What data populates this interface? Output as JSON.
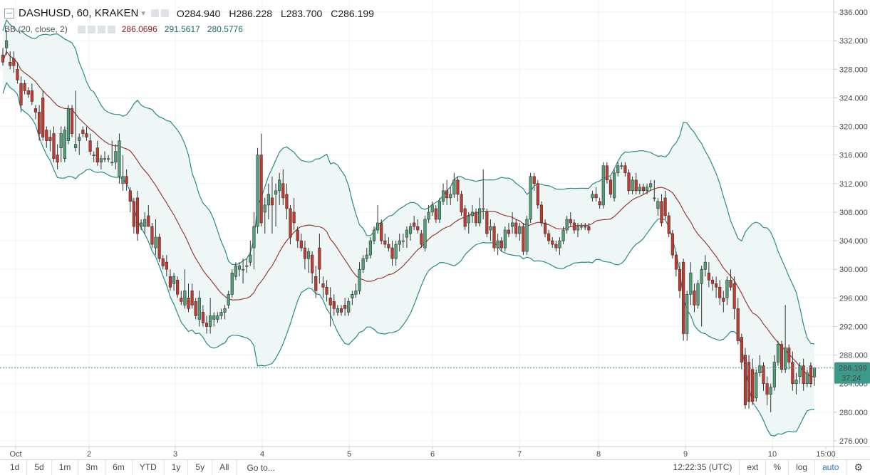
{
  "header": {
    "symbol": "DASHUSD, 60, KRAKEN",
    "dropdown_glyph": "▾",
    "open_label": "O",
    "open_value": "284.940",
    "high_label": "H",
    "high_value": "286.228",
    "low_label": "L",
    "low_value": "283.700",
    "close_label": "C",
    "close_value": "286.199"
  },
  "indicator": {
    "name": "BB (20, close, 2)",
    "basis": "286.0696",
    "upper": "291.5617",
    "lower": "280.5776"
  },
  "price_axis": {
    "ticks": [
      "336.000",
      "332.000",
      "328.000",
      "324.000",
      "320.000",
      "316.000",
      "312.000",
      "308.000",
      "304.000",
      "300.000",
      "296.000",
      "292.000",
      "288.000",
      "284.000",
      "280.000",
      "276.000"
    ],
    "tick_values": [
      336,
      332,
      328,
      324,
      320,
      316,
      312,
      308,
      304,
      300,
      296,
      292,
      288,
      284,
      280,
      276
    ],
    "last_price_label": "286.199",
    "countdown_label": "37:24"
  },
  "time_axis": {
    "labels": [
      "Oct",
      "2",
      "3",
      "4",
      "5",
      "6",
      "7",
      "8",
      "9",
      "10",
      "15:00"
    ]
  },
  "bottom_bar": {
    "timeframes": [
      "1d",
      "5d",
      "1m",
      "3m",
      "6m",
      "YTD",
      "1y",
      "5y",
      "All"
    ],
    "goto": "Go to...",
    "clock": "12:22:35 (UTC)",
    "ext": "ext",
    "percent": "%",
    "log": "log",
    "auto": "auto",
    "gear_icon": "gear-icon"
  },
  "colors": {
    "up": "#53a17a",
    "down": "#c8392d",
    "basis": "#9b3b35",
    "band": "#2a8a8a",
    "band_fill": "#eef6f6",
    "last_price_bg": "#3c9a8a",
    "grid": "#eef0f2"
  },
  "chart_data": {
    "type": "candlestick",
    "title": "DASHUSD, 60, KRAKEN",
    "ylim": [
      276,
      336
    ],
    "candles_ohlc": [
      [
        330.0,
        331.0,
        328.5,
        329.0
      ],
      [
        331.0,
        333.5,
        330.0,
        332.0
      ],
      [
        329.0,
        330.5,
        328.0,
        328.5
      ],
      [
        329.5,
        330.5,
        327.5,
        328.5
      ],
      [
        328.0,
        329.0,
        326.0,
        326.5
      ],
      [
        326.0,
        327.0,
        322.0,
        323.0
      ],
      [
        326.0,
        326.5,
        324.5,
        325.0
      ],
      [
        325.0,
        325.5,
        324.0,
        324.5
      ],
      [
        325.0,
        326.0,
        323.0,
        323.5
      ],
      [
        322.5,
        323.0,
        321.0,
        322.0
      ],
      [
        322.0,
        323.0,
        318.0,
        319.0
      ],
      [
        324.0,
        325.0,
        318.0,
        318.5
      ],
      [
        319.5,
        320.0,
        317.0,
        318.0
      ],
      [
        318.5,
        319.5,
        316.5,
        318.0
      ],
      [
        319.0,
        320.0,
        315.0,
        315.5
      ],
      [
        316.0,
        317.5,
        314.0,
        315.0
      ],
      [
        317.0,
        320.0,
        315.0,
        319.0
      ],
      [
        315.5,
        320.0,
        315.0,
        319.5
      ],
      [
        318.0,
        323.0,
        317.5,
        322.5
      ],
      [
        322.5,
        323.0,
        318.5,
        319.0
      ],
      [
        317.0,
        325.0,
        316.5,
        317.5
      ],
      [
        318.0,
        319.0,
        316.0,
        318.5
      ],
      [
        319.5,
        320.0,
        318.5,
        319.0
      ],
      [
        319.0,
        320.0,
        318.0,
        318.5
      ],
      [
        318.0,
        319.0,
        316.0,
        316.5
      ],
      [
        316.0,
        316.5,
        315.0,
        316.0
      ],
      [
        317.0,
        318.0,
        314.5,
        315.0
      ],
      [
        315.0,
        316.0,
        314.0,
        315.5
      ],
      [
        315.5,
        316.5,
        315.0,
        315.5
      ],
      [
        315.5,
        316.0,
        315.0,
        315.5
      ],
      [
        315.0,
        318.0,
        314.5,
        315.0
      ],
      [
        315.0,
        317.5,
        314.0,
        316.5
      ],
      [
        313.0,
        319.0,
        312.0,
        318.0
      ],
      [
        312.0,
        316.0,
        311.0,
        313.0
      ],
      [
        313.0,
        314.0,
        311.0,
        312.0
      ],
      [
        311.0,
        311.5,
        308.0,
        309.5
      ],
      [
        309.5,
        310.0,
        305.0,
        306.0
      ],
      [
        310.0,
        311.0,
        304.0,
        305.0
      ],
      [
        306.0,
        307.0,
        305.5,
        306.5
      ],
      [
        306.0,
        308.0,
        305.0,
        307.0
      ],
      [
        307.5,
        309.0,
        306.0,
        306.0
      ],
      [
        306.0,
        306.5,
        303.0,
        303.5
      ],
      [
        303.0,
        307.0,
        302.0,
        304.5
      ],
      [
        304.5,
        305.0,
        301.0,
        301.5
      ],
      [
        301.5,
        302.0,
        300.0,
        300.5
      ],
      [
        301.0,
        302.0,
        299.0,
        300.0
      ],
      [
        299.0,
        300.0,
        297.0,
        297.5
      ],
      [
        298.0,
        299.5,
        297.0,
        299.0
      ],
      [
        298.5,
        299.0,
        296.0,
        296.5
      ],
      [
        296.0,
        297.0,
        295.0,
        295.5
      ],
      [
        295.0,
        300.0,
        294.5,
        297.0
      ],
      [
        296.0,
        298.0,
        294.0,
        294.5
      ],
      [
        297.0,
        298.0,
        294.5,
        295.0
      ],
      [
        295.5,
        296.0,
        293.0,
        293.5
      ],
      [
        293.0,
        297.0,
        292.0,
        296.0
      ],
      [
        294.0,
        295.0,
        292.0,
        292.5
      ],
      [
        292.5,
        293.5,
        291.0,
        292.0
      ],
      [
        292.0,
        296.0,
        291.0,
        293.5
      ],
      [
        293.0,
        294.0,
        292.0,
        293.5
      ],
      [
        293.0,
        294.0,
        292.5,
        293.5
      ],
      [
        293.5,
        294.5,
        293.0,
        294.0
      ],
      [
        294.0,
        295.0,
        293.0,
        294.5
      ],
      [
        295.0,
        297.0,
        294.5,
        296.5
      ],
      [
        296.5,
        300.0,
        296.0,
        299.5
      ],
      [
        299.0,
        301.0,
        298.5,
        300.5
      ],
      [
        300.0,
        301.0,
        299.0,
        300.5
      ],
      [
        300.0,
        301.5,
        298.0,
        300.0
      ],
      [
        300.5,
        301.5,
        299.5,
        300.5
      ],
      [
        301.0,
        304.0,
        300.5,
        302.0
      ],
      [
        303.0,
        308.0,
        300.0,
        306.0
      ],
      [
        306.0,
        317.0,
        305.0,
        316.0
      ],
      [
        316.0,
        319.0,
        306.0,
        306.5
      ],
      [
        308.0,
        310.0,
        305.0,
        309.0
      ],
      [
        309.0,
        312.0,
        307.0,
        310.5
      ],
      [
        310.0,
        313.0,
        305.0,
        309.0
      ],
      [
        310.5,
        312.0,
        306.0,
        311.0
      ],
      [
        311.0,
        313.5,
        309.0,
        312.5
      ],
      [
        312.0,
        314.0,
        309.0,
        310.0
      ],
      [
        310.5,
        312.0,
        307.0,
        308.5
      ],
      [
        308.5,
        309.0,
        303.5,
        304.5
      ],
      [
        308.0,
        310.0,
        305.5,
        306.5
      ],
      [
        305.5,
        306.0,
        303.0,
        304.0
      ],
      [
        304.0,
        305.0,
        302.5,
        303.0
      ],
      [
        303.0,
        304.0,
        300.0,
        301.5
      ],
      [
        301.5,
        303.0,
        299.5,
        302.5
      ],
      [
        302.0,
        302.5,
        298.0,
        299.5
      ],
      [
        299.0,
        300.5,
        296.0,
        297.0
      ],
      [
        303.0,
        305.0,
        298.0,
        300.0
      ],
      [
        298.0,
        299.0,
        296.0,
        297.5
      ],
      [
        297.5,
        298.5,
        295.5,
        296.5
      ],
      [
        296.0,
        297.5,
        292.0,
        295.0
      ],
      [
        295.5,
        296.5,
        293.5,
        294.5
      ],
      [
        294.0,
        295.0,
        293.5,
        294.5
      ],
      [
        294.5,
        295.0,
        293.5,
        294.0
      ],
      [
        295.0,
        296.0,
        293.5,
        294.5
      ],
      [
        294.0,
        296.0,
        293.5,
        295.5
      ],
      [
        296.0,
        297.0,
        295.0,
        296.5
      ],
      [
        296.5,
        298.0,
        296.0,
        297.0
      ],
      [
        297.0,
        301.0,
        296.5,
        300.0
      ],
      [
        300.0,
        302.0,
        299.5,
        301.5
      ],
      [
        301.5,
        303.0,
        301.0,
        302.0
      ],
      [
        302.0,
        304.5,
        301.5,
        304.0
      ],
      [
        304.0,
        306.0,
        303.5,
        305.5
      ],
      [
        305.5,
        309.0,
        305.0,
        306.5
      ],
      [
        306.5,
        307.0,
        303.5,
        304.0
      ],
      [
        304.0,
        305.0,
        303.0,
        303.5
      ],
      [
        303.5,
        304.5,
        302.5,
        303.0
      ],
      [
        303.0,
        304.0,
        300.5,
        301.5
      ],
      [
        301.5,
        304.0,
        300.5,
        303.5
      ],
      [
        303.5,
        305.0,
        302.5,
        304.0
      ],
      [
        304.0,
        305.0,
        303.0,
        304.0
      ],
      [
        304.5,
        306.0,
        303.0,
        305.5
      ],
      [
        305.0,
        306.5,
        304.0,
        306.0
      ],
      [
        306.5,
        307.5,
        305.5,
        306.0
      ],
      [
        306.0,
        307.0,
        305.0,
        305.5
      ],
      [
        305.0,
        305.5,
        303.0,
        303.5
      ],
      [
        303.0,
        307.5,
        302.5,
        307.0
      ],
      [
        307.0,
        309.0,
        306.5,
        308.0
      ],
      [
        308.0,
        309.5,
        307.5,
        309.0
      ],
      [
        308.5,
        309.0,
        306.5,
        307.0
      ],
      [
        307.0,
        310.0,
        306.5,
        309.5
      ],
      [
        309.5,
        312.0,
        309.0,
        311.0
      ],
      [
        311.0,
        312.5,
        309.0,
        310.0
      ],
      [
        310.0,
        311.5,
        309.0,
        310.5
      ],
      [
        310.5,
        313.5,
        310.0,
        312.5
      ],
      [
        312.5,
        313.0,
        309.5,
        310.5
      ],
      [
        310.5,
        311.0,
        307.5,
        308.0
      ],
      [
        308.5,
        309.0,
        305.5,
        306.0
      ],
      [
        306.5,
        308.0,
        305.0,
        307.5
      ],
      [
        307.5,
        309.0,
        306.5,
        308.0
      ],
      [
        308.0,
        308.5,
        306.0,
        306.5
      ],
      [
        306.5,
        310.0,
        306.0,
        308.5
      ],
      [
        308.5,
        314.0,
        307.0,
        308.5
      ],
      [
        308.0,
        308.5,
        304.5,
        305.0
      ],
      [
        305.5,
        307.0,
        304.0,
        306.0
      ],
      [
        306.0,
        306.5,
        302.5,
        303.0
      ],
      [
        303.0,
        305.0,
        302.0,
        304.0
      ],
      [
        304.0,
        304.5,
        302.5,
        303.0
      ],
      [
        303.0,
        306.0,
        302.5,
        305.5
      ],
      [
        305.5,
        306.5,
        304.5,
        305.0
      ],
      [
        306.0,
        308.0,
        305.0,
        306.5
      ],
      [
        306.5,
        307.0,
        304.5,
        305.0
      ],
      [
        305.0,
        306.5,
        304.0,
        306.0
      ],
      [
        306.0,
        306.5,
        302.0,
        302.5
      ],
      [
        302.5,
        307.5,
        302.0,
        307.0
      ],
      [
        307.0,
        313.5,
        306.5,
        313.0
      ],
      [
        313.0,
        313.5,
        311.0,
        312.0
      ],
      [
        312.0,
        312.5,
        308.5,
        309.0
      ],
      [
        309.0,
        309.5,
        306.0,
        306.5
      ],
      [
        306.5,
        307.0,
        304.5,
        305.0
      ],
      [
        305.0,
        305.5,
        303.5,
        304.0
      ],
      [
        304.0,
        304.5,
        303.0,
        303.5
      ],
      [
        303.5,
        304.0,
        302.5,
        303.0
      ],
      [
        303.0,
        304.5,
        302.0,
        304.0
      ],
      [
        304.0,
        306.0,
        303.5,
        305.5
      ],
      [
        305.5,
        307.5,
        305.0,
        307.0
      ],
      [
        307.0,
        308.0,
        306.0,
        306.5
      ],
      [
        306.5,
        307.0,
        305.0,
        305.5
      ],
      [
        305.5,
        306.5,
        304.5,
        306.0
      ],
      [
        306.0,
        306.5,
        305.5,
        306.0
      ],
      [
        306.0,
        306.5,
        305.5,
        306.0
      ],
      [
        306.0,
        306.5,
        305.0,
        305.5
      ],
      [
        310.0,
        311.0,
        309.5,
        310.5
      ],
      [
        310.5,
        311.5,
        309.5,
        310.0
      ],
      [
        309.5,
        310.0,
        308.5,
        309.0
      ],
      [
        309.0,
        315.0,
        308.5,
        314.5
      ],
      [
        314.5,
        315.0,
        312.0,
        312.5
      ],
      [
        312.5,
        313.0,
        310.0,
        310.5
      ],
      [
        310.0,
        314.0,
        309.5,
        313.5
      ],
      [
        313.5,
        315.0,
        313.0,
        314.5
      ],
      [
        314.5,
        315.0,
        314.0,
        314.5
      ],
      [
        314.5,
        315.0,
        313.0,
        313.5
      ],
      [
        313.5,
        314.0,
        310.5,
        311.0
      ],
      [
        311.0,
        313.0,
        310.5,
        312.5
      ],
      [
        312.5,
        313.5,
        310.5,
        311.0
      ],
      [
        311.0,
        312.0,
        310.5,
        311.5
      ],
      [
        311.5,
        312.0,
        310.5,
        311.0
      ],
      [
        311.0,
        312.0,
        310.5,
        311.5
      ],
      [
        311.5,
        312.5,
        311.0,
        312.0
      ],
      [
        310.0,
        312.5,
        309.5,
        310.0
      ],
      [
        308.5,
        310.0,
        307.5,
        309.5
      ],
      [
        309.5,
        310.5,
        306.0,
        306.5
      ],
      [
        310.0,
        311.0,
        307.0,
        307.5
      ],
      [
        307.5,
        308.0,
        304.5,
        305.0
      ],
      [
        305.0,
        305.5,
        301.5,
        302.0
      ],
      [
        302.0,
        302.5,
        299.0,
        300.0
      ],
      [
        300.0,
        301.0,
        296.0,
        297.0
      ],
      [
        301.0,
        301.5,
        290.0,
        291.0
      ],
      [
        291.0,
        297.0,
        290.0,
        296.5
      ],
      [
        296.5,
        301.0,
        295.0,
        299.5
      ],
      [
        297.0,
        298.0,
        294.0,
        295.0
      ],
      [
        295.0,
        298.5,
        294.5,
        298.0
      ],
      [
        298.0,
        300.5,
        292.0,
        300.0
      ],
      [
        300.0,
        302.0,
        299.0,
        301.0
      ],
      [
        299.5,
        301.0,
        297.5,
        298.5
      ],
      [
        298.5,
        299.0,
        297.0,
        298.0
      ],
      [
        298.0,
        299.0,
        296.0,
        297.5
      ],
      [
        297.5,
        298.5,
        295.0,
        296.0
      ],
      [
        296.0,
        297.0,
        294.0,
        295.5
      ],
      [
        296.0,
        299.0,
        295.0,
        298.5
      ],
      [
        298.5,
        300.0,
        297.0,
        297.5
      ],
      [
        298.0,
        299.0,
        293.0,
        294.5
      ],
      [
        294.5,
        296.0,
        289.5,
        290.0
      ],
      [
        290.5,
        291.0,
        286.0,
        287.0
      ],
      [
        288.0,
        289.0,
        280.5,
        281.0
      ],
      [
        287.0,
        288.0,
        280.5,
        281.5
      ],
      [
        286.0,
        287.5,
        281.0,
        281.5
      ],
      [
        282.0,
        286.0,
        281.5,
        285.5
      ],
      [
        285.5,
        288.0,
        285.0,
        286.5
      ],
      [
        286.5,
        287.0,
        283.0,
        284.0
      ],
      [
        284.0,
        285.0,
        281.0,
        282.5
      ],
      [
        282.5,
        284.0,
        280.0,
        283.5
      ],
      [
        283.5,
        288.0,
        283.0,
        287.0
      ],
      [
        287.0,
        290.0,
        286.5,
        289.5
      ],
      [
        289.5,
        290.0,
        285.5,
        286.0
      ],
      [
        286.0,
        295.0,
        285.5,
        289.0
      ],
      [
        289.0,
        289.5,
        286.0,
        287.0
      ],
      [
        287.0,
        288.5,
        283.0,
        284.0
      ],
      [
        284.0,
        285.5,
        282.5,
        284.5
      ],
      [
        285.0,
        287.0,
        284.0,
        286.5
      ],
      [
        286.5,
        287.5,
        283.0,
        284.0
      ],
      [
        284.0,
        286.0,
        283.5,
        285.5
      ],
      [
        286.5,
        287.0,
        283.5,
        284.0
      ],
      [
        284.94,
        286.228,
        283.7,
        286.199
      ]
    ],
    "bollinger": {
      "period": 20,
      "source": "close",
      "stddev": 2
    }
  }
}
